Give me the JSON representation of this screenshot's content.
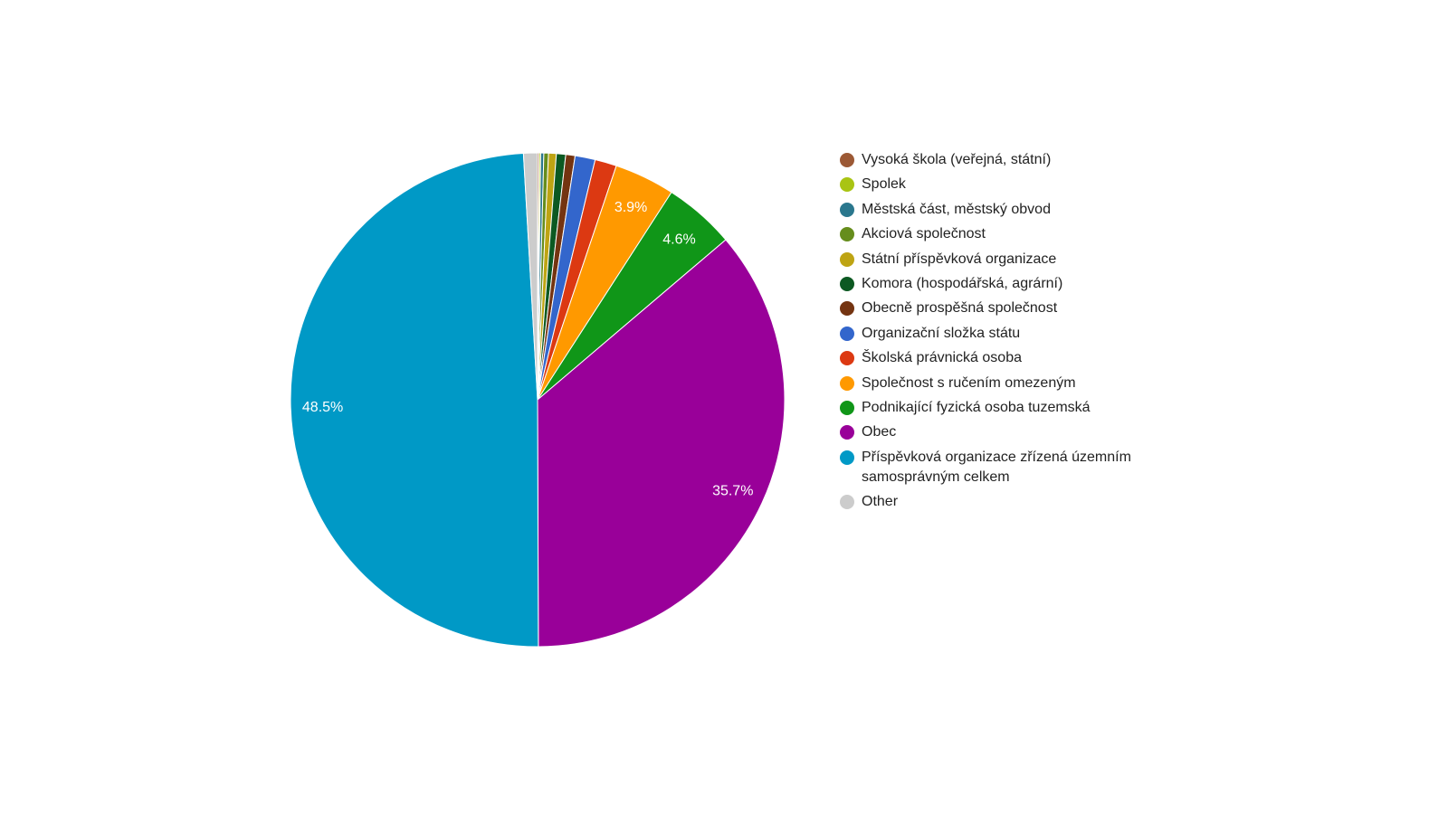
{
  "chart_data": {
    "type": "pie",
    "title": "",
    "legend_position": "right",
    "slices": [
      {
        "label": "Vysoká škola (veřejná, státní)",
        "value": 0.1,
        "color": "#9c5935",
        "display": ""
      },
      {
        "label": "Spolek",
        "value": 0.1,
        "color": "#a9c413",
        "display": ""
      },
      {
        "label": "Městská část, městský obvod",
        "value": 0.2,
        "color": "#2a778d",
        "display": ""
      },
      {
        "label": "Akciová společnost",
        "value": 0.3,
        "color": "#668d1c",
        "display": ""
      },
      {
        "label": "Státní příspěvková organizace",
        "value": 0.5,
        "color": "#bea413",
        "display": ""
      },
      {
        "label": "Komora (hospodářská, agrární)",
        "value": 0.6,
        "color": "#0c5922",
        "display": ""
      },
      {
        "label": "Obecně prospěšná společnost",
        "value": 0.6,
        "color": "#743411",
        "display": ""
      },
      {
        "label": "Organizační složka státu",
        "value": 1.3,
        "color": "#3366cc",
        "display": ""
      },
      {
        "label": "Školská právnická osoba",
        "value": 1.4,
        "color": "#dc3912",
        "display": ""
      },
      {
        "label": "Společnost s ručením omezeným",
        "value": 3.9,
        "color": "#ff9900",
        "display": "3.9%"
      },
      {
        "label": "Podnikající fyzická osoba tuzemská",
        "value": 4.6,
        "color": "#109618",
        "display": "4.6%"
      },
      {
        "label": "Obec",
        "value": 35.7,
        "color": "#990099",
        "display": "35.7%"
      },
      {
        "label": "Příspěvková organizace zřízená územním samosprávným celkem",
        "value": 48.5,
        "color": "#0099c6",
        "display": "48.5%"
      },
      {
        "label": "Other",
        "value": 0.9,
        "color": "#cccccc",
        "display": ""
      }
    ]
  }
}
